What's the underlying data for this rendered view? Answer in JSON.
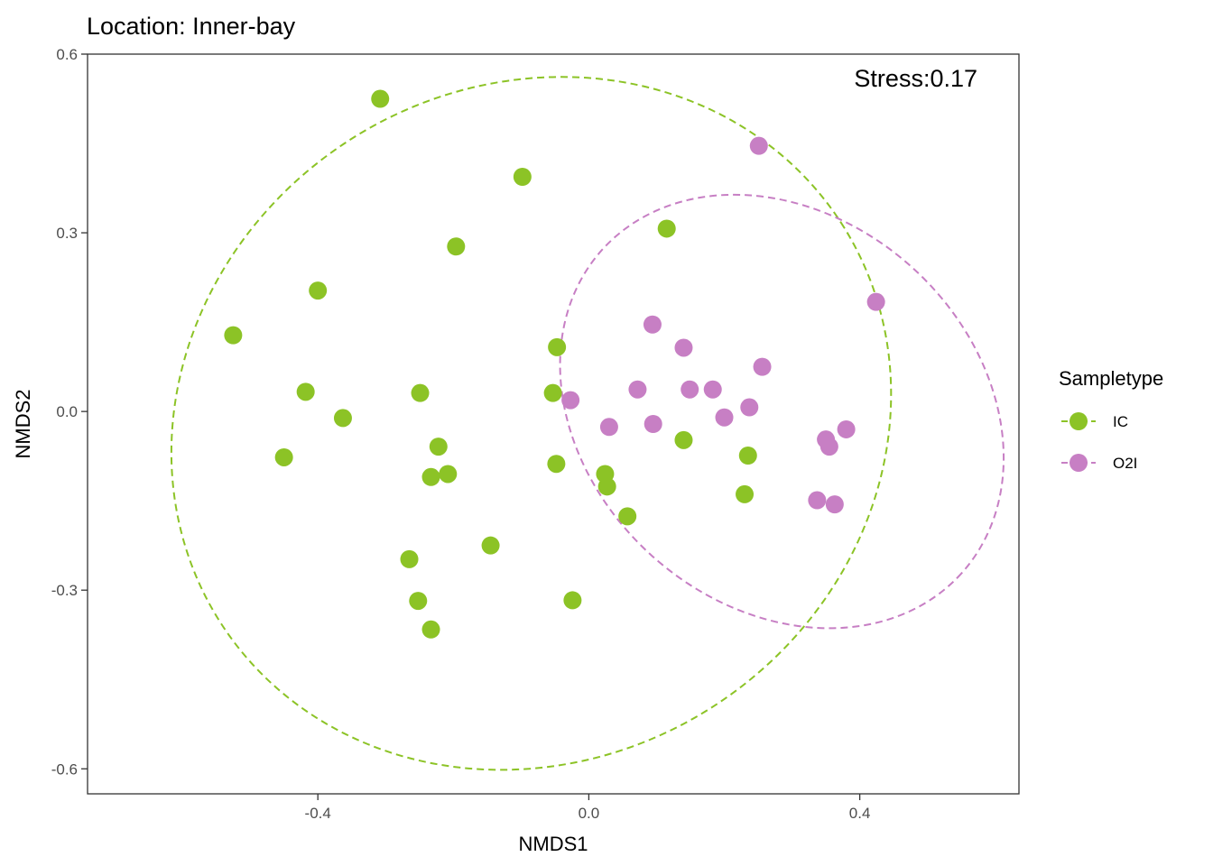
{
  "chart_data": {
    "type": "scatter",
    "title": "Location: Inner-bay",
    "xlabel": "NMDS1",
    "ylabel": "NMDS2",
    "xlim": [
      -0.74,
      0.635
    ],
    "ylim": [
      -0.642,
      0.6
    ],
    "xticks": [
      -0.4,
      0.0,
      0.4
    ],
    "xtick_labels": [
      "-0.4",
      "0.0",
      "0.4"
    ],
    "yticks": [
      0.6,
      0.3,
      0.0,
      -0.3,
      -0.6
    ],
    "ytick_labels": [
      "0.6",
      "0.3",
      "0.0",
      "-0.3",
      "-0.6"
    ],
    "grid": false,
    "annotation": "Stress:0.17",
    "legend": {
      "title": "Sampletype",
      "position": "right"
    },
    "series": [
      {
        "name": "IC",
        "color": "#8cc326",
        "ellipse": {
          "cx": -0.085,
          "cy": -0.02,
          "rx": 0.545,
          "ry": 0.565,
          "angle_deg": -33
        },
        "points": [
          [
            -0.308,
            0.525
          ],
          [
            -0.098,
            0.394
          ],
          [
            -0.196,
            0.277
          ],
          [
            0.115,
            0.307
          ],
          [
            -0.4,
            0.203
          ],
          [
            -0.525,
            0.128
          ],
          [
            -0.047,
            0.108
          ],
          [
            -0.418,
            0.033
          ],
          [
            -0.249,
            0.031
          ],
          [
            -0.053,
            0.031
          ],
          [
            -0.363,
            -0.011
          ],
          [
            -0.222,
            -0.059
          ],
          [
            -0.45,
            -0.077
          ],
          [
            -0.208,
            -0.105
          ],
          [
            -0.233,
            -0.11
          ],
          [
            -0.048,
            -0.088
          ],
          [
            0.024,
            -0.105
          ],
          [
            0.027,
            -0.126
          ],
          [
            0.14,
            -0.048
          ],
          [
            0.235,
            -0.074
          ],
          [
            0.057,
            -0.176
          ],
          [
            0.23,
            -0.139
          ],
          [
            -0.145,
            -0.225
          ],
          [
            -0.265,
            -0.248
          ],
          [
            -0.252,
            -0.318
          ],
          [
            -0.233,
            -0.366
          ],
          [
            -0.024,
            -0.317
          ]
        ]
      },
      {
        "name": "O2I",
        "color": "#c77fc4",
        "ellipse": {
          "cx": 0.285,
          "cy": 0.0,
          "rx": 0.357,
          "ry": 0.326,
          "angle_deg": 42
        },
        "points": [
          [
            0.251,
            0.446
          ],
          [
            0.424,
            0.184
          ],
          [
            0.094,
            0.146
          ],
          [
            0.14,
            0.107
          ],
          [
            0.256,
            0.075
          ],
          [
            0.072,
            0.037
          ],
          [
            0.149,
            0.037
          ],
          [
            0.183,
            0.037
          ],
          [
            -0.027,
            0.019
          ],
          [
            0.237,
            0.007
          ],
          [
            0.03,
            -0.026
          ],
          [
            0.095,
            -0.021
          ],
          [
            0.2,
            -0.01
          ],
          [
            0.38,
            -0.03
          ],
          [
            0.35,
            -0.047
          ],
          [
            0.355,
            -0.059
          ],
          [
            0.337,
            -0.149
          ],
          [
            0.363,
            -0.156
          ]
        ]
      }
    ]
  }
}
